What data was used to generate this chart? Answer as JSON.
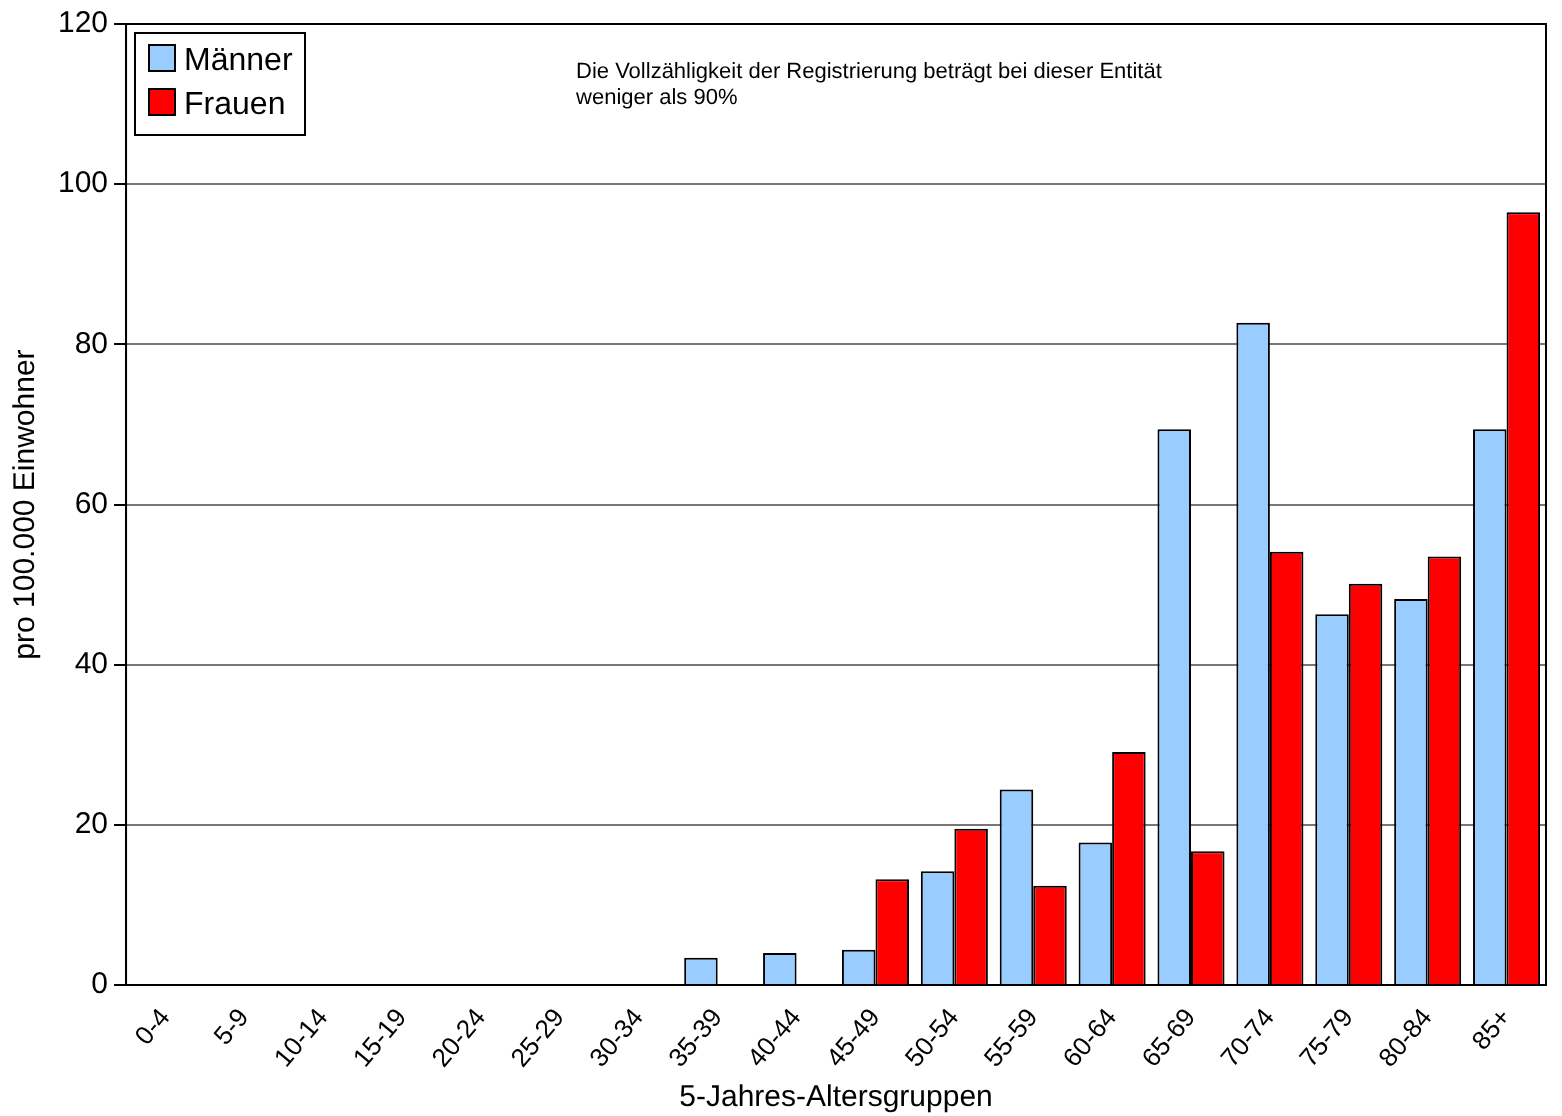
{
  "chart_data": {
    "type": "bar",
    "xlabel": "5-Jahres-Altersgruppen",
    "ylabel": "pro 100.000 Einwohner",
    "categories": [
      "0-4",
      "5-9",
      "10-14",
      "15-19",
      "20-24",
      "25-29",
      "30-34",
      "35-39",
      "40-44",
      "45-49",
      "50-54",
      "55-59",
      "60-64",
      "65-69",
      "70-74",
      "75-79",
      "80-84",
      "85+"
    ],
    "series": [
      {
        "name": "Männer",
        "color": "#99ccff",
        "values": [
          0,
          0,
          0,
          0,
          0,
          0,
          0,
          3.4,
          4.0,
          4.4,
          14.2,
          24.4,
          17.8,
          69.4,
          82.7,
          46.3,
          48.2,
          69.4
        ]
      },
      {
        "name": "Frauen",
        "color": "#ff0000",
        "values": [
          0,
          0,
          0,
          0,
          0,
          0,
          0,
          0,
          0,
          13.2,
          19.5,
          12.4,
          29.1,
          16.7,
          54.1,
          50.1,
          53.5,
          96.5
        ]
      }
    ],
    "ylim": [
      0,
      120
    ],
    "yticks": [
      0,
      20,
      40,
      60,
      80,
      100,
      120
    ],
    "grid": "y",
    "legend": "top left",
    "annotations": [
      "Die Vollzähligkeit der Registrierung beträgt bei dieser Entität weniger als 90%"
    ]
  }
}
